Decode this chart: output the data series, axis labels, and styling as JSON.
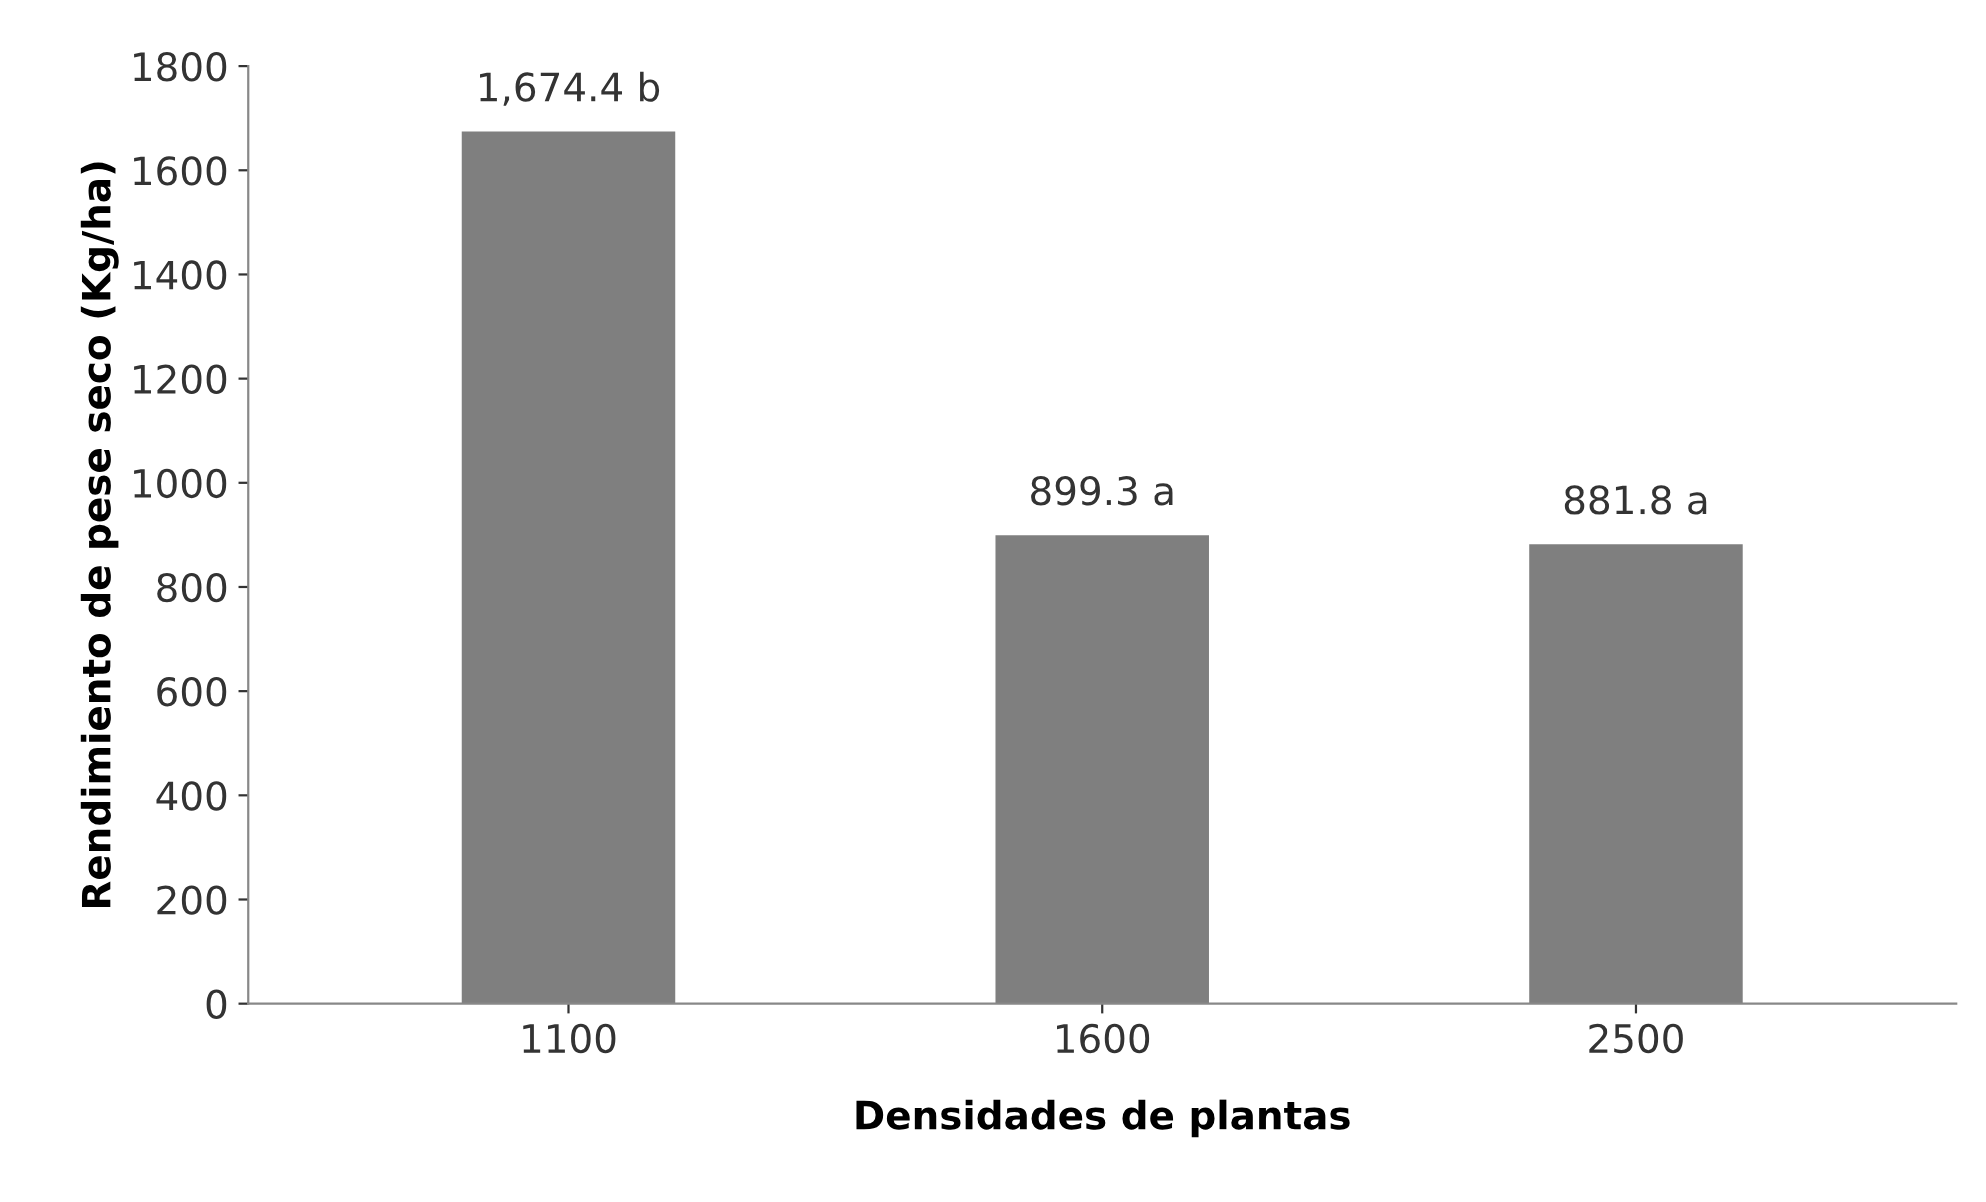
{
  "chart_data": {
    "type": "bar",
    "xlabel": "Densidades de plantas",
    "ylabel": "Rendimiento de pese seco (Kg/ha)",
    "categories": [
      "1100",
      "1600",
      "2500"
    ],
    "values": [
      1674.4,
      899.3,
      881.8
    ],
    "value_labels": [
      "1,674.4 b",
      "899.3 a",
      "881.8 a"
    ],
    "color": "#7f7f7f",
    "ylim": [
      0,
      1800
    ],
    "yticks": [
      0,
      200,
      400,
      600,
      800,
      1000,
      1200,
      1400,
      1600,
      1800
    ],
    "grid": false,
    "legend": false
  }
}
